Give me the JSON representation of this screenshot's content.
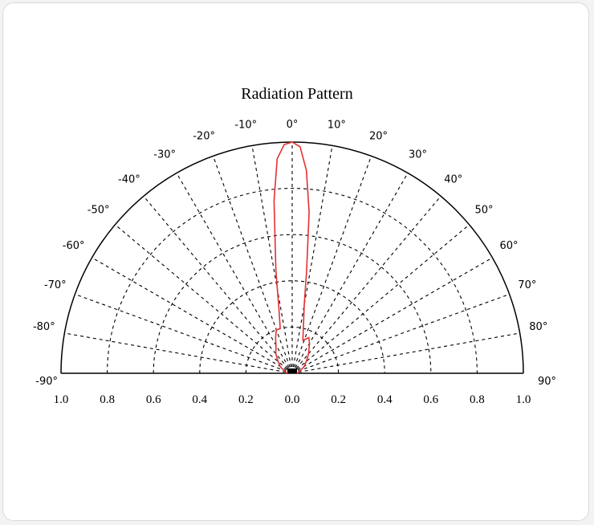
{
  "chart_data": {
    "type": "polar",
    "title": "Radiation Pattern",
    "theta_range": [
      -90,
      90
    ],
    "r_range": [
      0,
      1.0
    ],
    "grid": true,
    "angle_ticks": [
      {
        "deg": -90,
        "label": "-90°"
      },
      {
        "deg": -80,
        "label": "-80°"
      },
      {
        "deg": -70,
        "label": "-70°"
      },
      {
        "deg": -60,
        "label": "-60°"
      },
      {
        "deg": -50,
        "label": "-50°"
      },
      {
        "deg": -40,
        "label": "-40°"
      },
      {
        "deg": -30,
        "label": "-30°"
      },
      {
        "deg": -20,
        "label": "-20°"
      },
      {
        "deg": -10,
        "label": "-10°"
      },
      {
        "deg": 0,
        "label": "0°"
      },
      {
        "deg": 10,
        "label": "10°"
      },
      {
        "deg": 20,
        "label": "20°"
      },
      {
        "deg": 30,
        "label": "30°"
      },
      {
        "deg": 40,
        "label": "40°"
      },
      {
        "deg": 50,
        "label": "50°"
      },
      {
        "deg": 60,
        "label": "60°"
      },
      {
        "deg": 70,
        "label": "70°"
      },
      {
        "deg": 80,
        "label": "80°"
      },
      {
        "deg": 90,
        "label": "90°"
      }
    ],
    "radius_ticks": [
      {
        "value": -1.0,
        "label": "1.0"
      },
      {
        "value": -0.8,
        "label": "0.8"
      },
      {
        "value": -0.6,
        "label": "0.6"
      },
      {
        "value": -0.4,
        "label": "0.4"
      },
      {
        "value": -0.2,
        "label": "0.2"
      },
      {
        "value": 0.0,
        "label": "0.0"
      },
      {
        "value": 0.2,
        "label": "0.2"
      },
      {
        "value": 0.4,
        "label": "0.4"
      },
      {
        "value": 0.6,
        "label": "0.6"
      },
      {
        "value": 0.8,
        "label": "0.8"
      },
      {
        "value": 1.0,
        "label": "1.0"
      }
    ],
    "series": [
      {
        "color": "#e53030",
        "points": [
          {
            "theta": -90,
            "r": 0.02
          },
          {
            "theta": -80,
            "r": 0.03
          },
          {
            "theta": -70,
            "r": 0.04
          },
          {
            "theta": -60,
            "r": 0.06
          },
          {
            "theta": -50,
            "r": 0.08
          },
          {
            "theta": -40,
            "r": 0.11
          },
          {
            "theta": -30,
            "r": 0.14
          },
          {
            "theta": -25,
            "r": 0.17
          },
          {
            "theta": -20,
            "r": 0.2
          },
          {
            "theta": -15,
            "r": 0.2
          },
          {
            "theta": -12,
            "r": 0.27
          },
          {
            "theta": -9,
            "r": 0.45
          },
          {
            "theta": -6,
            "r": 0.75
          },
          {
            "theta": -4,
            "r": 0.93
          },
          {
            "theta": -2,
            "r": 0.99
          },
          {
            "theta": 0,
            "r": 1.0
          },
          {
            "theta": 2,
            "r": 0.98
          },
          {
            "theta": 4,
            "r": 0.88
          },
          {
            "theta": 6,
            "r": 0.7
          },
          {
            "theta": 8,
            "r": 0.45
          },
          {
            "theta": 10,
            "r": 0.3
          },
          {
            "theta": 14,
            "r": 0.2
          },
          {
            "theta": 18,
            "r": 0.15
          },
          {
            "theta": 25,
            "r": 0.17
          },
          {
            "theta": 30,
            "r": 0.15
          },
          {
            "theta": 40,
            "r": 0.11
          },
          {
            "theta": 50,
            "r": 0.08
          },
          {
            "theta": 60,
            "r": 0.06
          },
          {
            "theta": 70,
            "r": 0.04
          },
          {
            "theta": 80,
            "r": 0.03
          },
          {
            "theta": 90,
            "r": 0.02
          }
        ]
      }
    ]
  }
}
